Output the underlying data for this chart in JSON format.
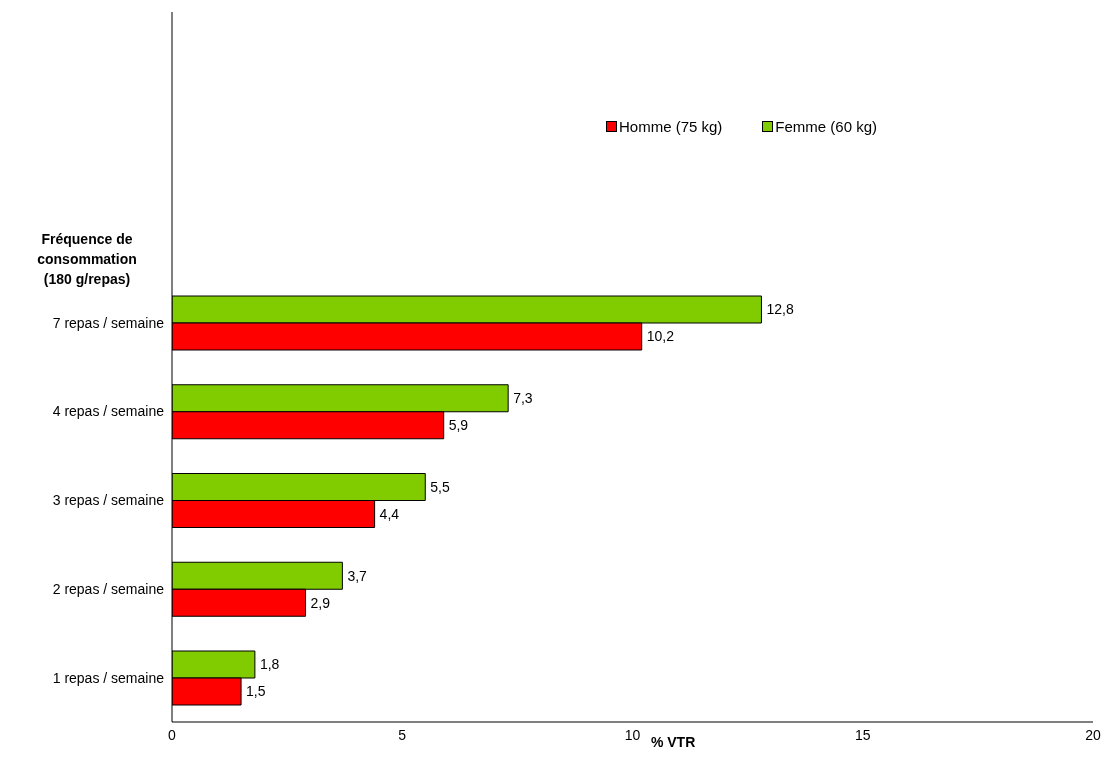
{
  "chart_data": {
    "type": "bar",
    "orientation": "horizontal",
    "ylabel": "Fréquence de consommation (180 g/repas)",
    "xlabel": "% VTR",
    "categories": [
      null,
      null,
      null,
      "7 repas / semaine",
      "4 repas / semaine",
      "3 repas / semaine",
      "2 repas / semaine",
      "1 repas / semaine"
    ],
    "series": [
      {
        "name": "Homme (75 kg)",
        "color": "#ff0000",
        "values": [
          null,
          null,
          null,
          10.2,
          5.9,
          4.4,
          2.9,
          1.5
        ],
        "value_labels": [
          null,
          null,
          null,
          "10,2",
          "5,9",
          "4,4",
          "2,9",
          "1,5"
        ]
      },
      {
        "name": "Femme (60 kg)",
        "color": "#80cc00",
        "values": [
          null,
          null,
          null,
          12.8,
          7.3,
          5.5,
          3.7,
          1.8
        ],
        "value_labels": [
          null,
          null,
          null,
          "12,8",
          "7,3",
          "5,5",
          "3,7",
          "1,8"
        ]
      }
    ],
    "xlim": [
      0,
      20
    ],
    "xticks": [
      0,
      5,
      10,
      15,
      20
    ],
    "legend": "top right"
  }
}
